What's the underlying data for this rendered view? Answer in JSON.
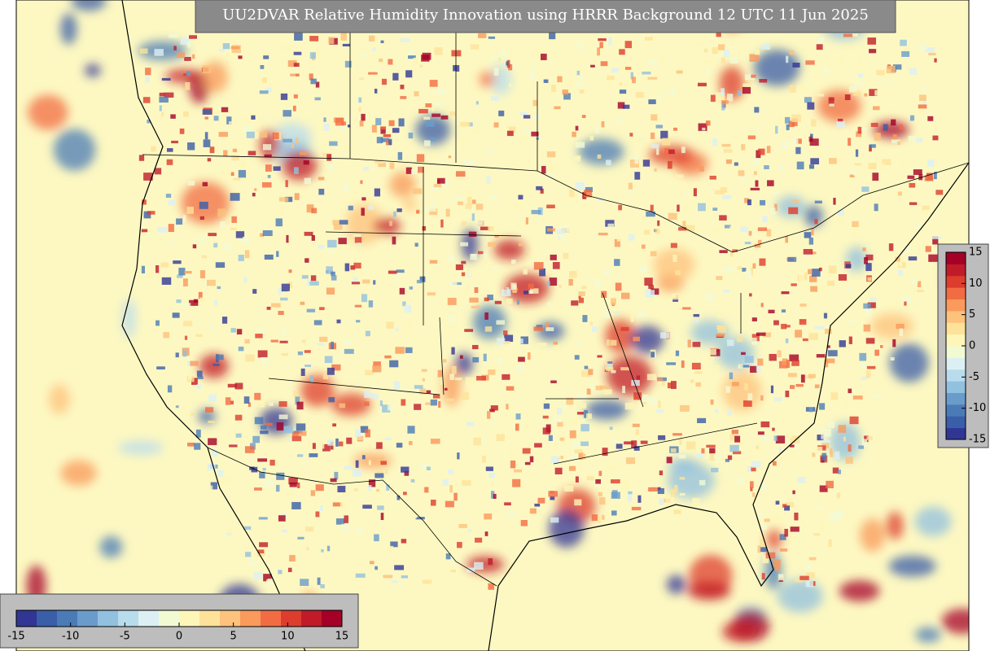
{
  "title": "UU2DVAR Relative Humidity Innovation using HRRR Background 12 UTC 11 Jun 2025",
  "colorbar": {
    "range": [
      -15,
      15
    ],
    "ticks": [
      -15,
      -10,
      -5,
      0,
      5,
      10,
      15
    ],
    "colors": [
      "#313695",
      "#3a5ea8",
      "#4a7bb7",
      "#6a9ccb",
      "#92c0df",
      "#b9dced",
      "#dcf0f4",
      "#f2fad4",
      "#fef6b9",
      "#fee29a",
      "#fdc27c",
      "#fa9a5c",
      "#f26c43",
      "#dd3d2d",
      "#c11b29",
      "#a50026"
    ]
  }
}
